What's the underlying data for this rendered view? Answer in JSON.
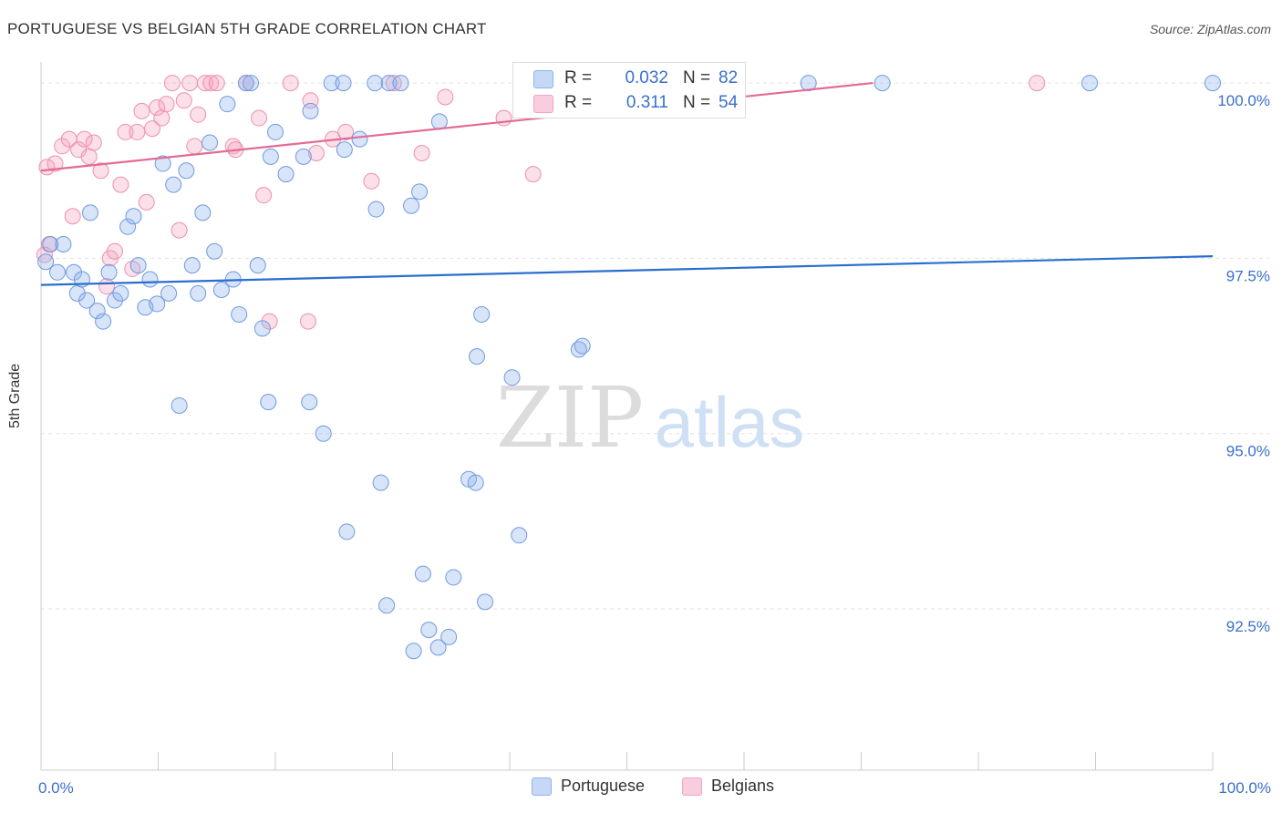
{
  "title": "PORTUGUESE VS BELGIAN 5TH GRADE CORRELATION CHART",
  "source": "Source: ZipAtlas.com",
  "watermark": {
    "zip": "ZIP",
    "atlas": "atlas"
  },
  "legend": {
    "portuguese": {
      "r_label": "R =",
      "r_value": "0.032",
      "n_label": "N =",
      "n_value": "82"
    },
    "belgians": {
      "r_label": "R =",
      "r_value": "0.311",
      "n_label": "N =",
      "n_value": "54"
    }
  },
  "bottom_legend": {
    "portuguese": "Portuguese",
    "belgians": "Belgians"
  },
  "chart_data": {
    "type": "scatter",
    "xlabel": "",
    "ylabel": "5th Grade",
    "xlim": [
      0,
      100
    ],
    "ylim": [
      90.2,
      100.3
    ],
    "x_tick_labels": [
      {
        "value": 0,
        "label": "0.0%"
      },
      {
        "value": 100,
        "label": "100.0%"
      }
    ],
    "y_ticks": [
      {
        "value": 100,
        "label": "100.0%"
      },
      {
        "value": 97.5,
        "label": "97.5%"
      },
      {
        "value": 95,
        "label": "95.0%"
      },
      {
        "value": 92.5,
        "label": "92.5%"
      }
    ],
    "colors": {
      "portuguese": "#8fb3ec",
      "belgians": "#f4a3bf",
      "portuguese_line": "#2a6fcf",
      "belgians_line": "#e36b96",
      "axis": "#cccccc",
      "tick_text": "#3a6fcc"
    },
    "series": [
      {
        "name": "Portuguese",
        "trend": {
          "x": [
            0,
            100
          ],
          "y": [
            97.12,
            97.53
          ]
        },
        "points": [
          [
            0.4,
            97.45
          ],
          [
            0.8,
            97.7
          ],
          [
            1.4,
            97.3
          ],
          [
            1.9,
            97.7
          ],
          [
            2.8,
            97.3
          ],
          [
            3.1,
            97.0
          ],
          [
            3.5,
            97.2
          ],
          [
            3.9,
            96.9
          ],
          [
            4.2,
            98.15
          ],
          [
            4.8,
            96.75
          ],
          [
            5.3,
            96.6
          ],
          [
            5.8,
            97.3
          ],
          [
            6.3,
            96.9
          ],
          [
            6.8,
            97.0
          ],
          [
            7.4,
            97.95
          ],
          [
            7.9,
            98.1
          ],
          [
            8.3,
            97.4
          ],
          [
            8.9,
            96.8
          ],
          [
            9.3,
            97.2
          ],
          [
            9.9,
            96.85
          ],
          [
            10.4,
            98.85
          ],
          [
            10.9,
            97.0
          ],
          [
            11.3,
            98.55
          ],
          [
            11.8,
            95.4
          ],
          [
            12.4,
            98.75
          ],
          [
            12.9,
            97.4
          ],
          [
            13.4,
            97.0
          ],
          [
            13.8,
            98.15
          ],
          [
            14.4,
            99.15
          ],
          [
            14.8,
            97.6
          ],
          [
            15.4,
            97.05
          ],
          [
            15.9,
            99.7
          ],
          [
            16.4,
            97.2
          ],
          [
            16.9,
            96.7
          ],
          [
            17.5,
            100.0
          ],
          [
            17.9,
            100.0
          ],
          [
            18.5,
            97.4
          ],
          [
            18.9,
            96.5
          ],
          [
            19.4,
            95.45
          ],
          [
            19.6,
            98.95
          ],
          [
            20.0,
            99.3
          ],
          [
            20.9,
            98.7
          ],
          [
            22.4,
            98.95
          ],
          [
            22.9,
            95.45
          ],
          [
            23.0,
            99.6
          ],
          [
            24.1,
            95.0
          ],
          [
            24.8,
            100.0
          ],
          [
            25.8,
            100.0
          ],
          [
            25.9,
            99.05
          ],
          [
            26.1,
            93.6
          ],
          [
            27.2,
            99.2
          ],
          [
            28.5,
            100.0
          ],
          [
            28.6,
            98.2
          ],
          [
            29.0,
            94.3
          ],
          [
            29.5,
            92.55
          ],
          [
            29.7,
            100.0
          ],
          [
            30.7,
            100.0
          ],
          [
            31.6,
            98.25
          ],
          [
            31.8,
            91.9
          ],
          [
            32.3,
            98.45
          ],
          [
            32.6,
            93.0
          ],
          [
            33.1,
            92.2
          ],
          [
            33.9,
            91.95
          ],
          [
            34.0,
            99.45
          ],
          [
            34.8,
            92.1
          ],
          [
            35.2,
            92.95
          ],
          [
            36.5,
            94.35
          ],
          [
            37.1,
            94.3
          ],
          [
            37.6,
            96.7
          ],
          [
            37.2,
            96.1
          ],
          [
            37.9,
            92.6
          ],
          [
            40.2,
            95.8
          ],
          [
            40.8,
            93.55
          ],
          [
            41.2,
            100.0
          ],
          [
            45.9,
            96.2
          ],
          [
            46.2,
            96.25
          ],
          [
            48.1,
            100.0
          ],
          [
            57.5,
            100.0
          ],
          [
            65.5,
            100.0
          ],
          [
            71.8,
            100.0
          ],
          [
            89.5,
            100.0
          ],
          [
            100.0,
            100.0
          ]
        ]
      },
      {
        "name": "Belgians",
        "trend": {
          "x": [
            0,
            71
          ],
          "y": [
            98.75,
            100.0
          ]
        },
        "points": [
          [
            0.3,
            97.55
          ],
          [
            0.5,
            98.8
          ],
          [
            0.7,
            97.7
          ],
          [
            1.2,
            98.85
          ],
          [
            1.8,
            99.1
          ],
          [
            2.4,
            99.2
          ],
          [
            2.7,
            98.1
          ],
          [
            3.2,
            99.05
          ],
          [
            3.7,
            99.2
          ],
          [
            4.1,
            98.95
          ],
          [
            4.5,
            99.15
          ],
          [
            5.1,
            98.75
          ],
          [
            5.6,
            97.1
          ],
          [
            5.9,
            97.5
          ],
          [
            6.3,
            97.6
          ],
          [
            6.8,
            98.55
          ],
          [
            7.2,
            99.3
          ],
          [
            7.8,
            97.35
          ],
          [
            8.2,
            99.3
          ],
          [
            8.6,
            99.6
          ],
          [
            9.0,
            98.3
          ],
          [
            9.5,
            99.35
          ],
          [
            9.9,
            99.65
          ],
          [
            10.3,
            99.5
          ],
          [
            10.7,
            99.7
          ],
          [
            11.2,
            100.0
          ],
          [
            11.8,
            97.9
          ],
          [
            12.2,
            99.75
          ],
          [
            12.7,
            100.0
          ],
          [
            13.1,
            99.1
          ],
          [
            13.4,
            99.55
          ],
          [
            14.0,
            100.0
          ],
          [
            14.5,
            100.0
          ],
          [
            15.0,
            100.0
          ],
          [
            16.4,
            99.1
          ],
          [
            16.6,
            99.05
          ],
          [
            17.5,
            100.0
          ],
          [
            18.6,
            99.5
          ],
          [
            19.0,
            98.4
          ],
          [
            19.5,
            96.6
          ],
          [
            21.3,
            100.0
          ],
          [
            22.8,
            96.6
          ],
          [
            23.0,
            99.75
          ],
          [
            23.5,
            99.0
          ],
          [
            24.9,
            99.2
          ],
          [
            26.0,
            99.3
          ],
          [
            28.2,
            98.6
          ],
          [
            30.1,
            100.0
          ],
          [
            32.5,
            99.0
          ],
          [
            34.5,
            99.8
          ],
          [
            39.5,
            99.5
          ],
          [
            42.0,
            98.7
          ],
          [
            52.0,
            100.0
          ],
          [
            85.0,
            100.0
          ]
        ]
      }
    ]
  }
}
